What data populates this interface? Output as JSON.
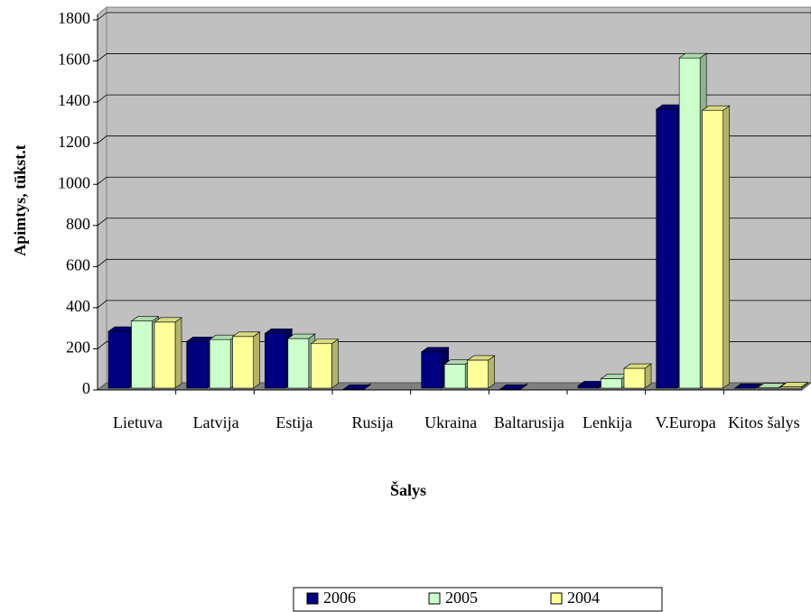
{
  "chart_data": {
    "type": "bar3d",
    "x_label": "Šalys",
    "y_label": "Apimtys, tūkst.t",
    "categories": [
      "Lietuva",
      "Latvija",
      "Estija",
      "Rusija",
      "Ukraina",
      "Baltarusija",
      "Lenkija",
      "V.Europa",
      "Kitos šalys"
    ],
    "series": [
      {
        "name": "2006",
        "color": "#000080",
        "values": [
          285,
          235,
          275,
          3,
          185,
          3,
          20,
          1365,
          8
        ]
      },
      {
        "name": "2005",
        "color": "#ccffcc",
        "values": [
          335,
          245,
          250,
          null,
          125,
          null,
          55,
          1615,
          10
        ]
      },
      {
        "name": "2004",
        "color": "#ffff99",
        "values": [
          330,
          260,
          225,
          null,
          145,
          null,
          105,
          1360,
          15
        ]
      }
    ],
    "ylim": [
      0,
      1800
    ],
    "yticks": [
      0,
      200,
      400,
      600,
      800,
      1000,
      1200,
      1400,
      1600,
      1800
    ],
    "grid": true,
    "legend": "bottom"
  }
}
